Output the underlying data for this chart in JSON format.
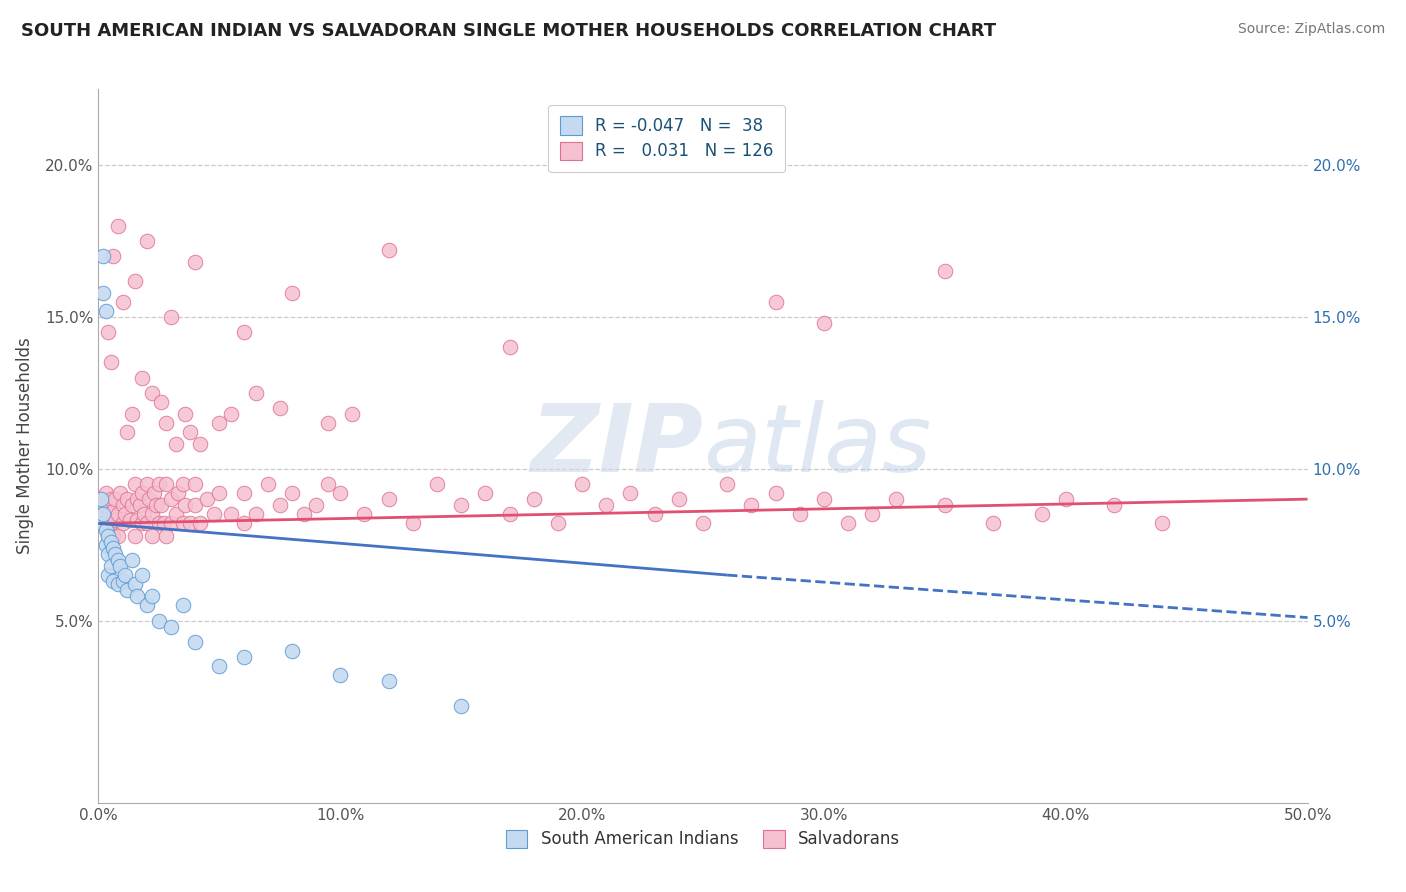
{
  "title": "SOUTH AMERICAN INDIAN VS SALVADORAN SINGLE MOTHER HOUSEHOLDS CORRELATION CHART",
  "source": "Source: ZipAtlas.com",
  "xlabel_blue": "South American Indians",
  "xlabel_pink": "Salvadorans",
  "ylabel": "Single Mother Households",
  "xlim": [
    0.0,
    0.5
  ],
  "ylim": [
    -0.01,
    0.225
  ],
  "xticks": [
    0.0,
    0.1,
    0.2,
    0.3,
    0.4,
    0.5
  ],
  "yticks": [
    0.05,
    0.1,
    0.15,
    0.2
  ],
  "xticklabels": [
    "0.0%",
    "10.0%",
    "20.0%",
    "30.0%",
    "40.0%",
    "50.0%"
  ],
  "yticklabels": [
    "5.0%",
    "10.0%",
    "15.0%",
    "20.0%"
  ],
  "legend_r_blue": "-0.047",
  "legend_n_blue": "38",
  "legend_r_pink": "0.031",
  "legend_n_pink": "126",
  "blue_fill": "#c5daf0",
  "blue_edge": "#5b9bd5",
  "pink_fill": "#f5c0d0",
  "pink_edge": "#e07090",
  "blue_line": "#4472c4",
  "pink_line": "#e05070",
  "watermark_color": "#ccd8ea",
  "grid_color": "#cccccc",
  "title_color": "#222222",
  "source_color": "#777777",
  "legend_text_color": "#1a5276",
  "blue_line_start_x": 0.0,
  "blue_line_start_y": 0.082,
  "blue_line_solid_end_x": 0.26,
  "blue_line_solid_end_y": 0.065,
  "blue_line_dash_end_x": 0.5,
  "blue_line_dash_end_y": 0.051,
  "pink_line_start_x": 0.0,
  "pink_line_start_y": 0.082,
  "pink_line_end_x": 0.5,
  "pink_line_end_y": 0.09,
  "blue_x": [
    0.001,
    0.001,
    0.002,
    0.002,
    0.002,
    0.003,
    0.003,
    0.003,
    0.004,
    0.004,
    0.004,
    0.005,
    0.005,
    0.006,
    0.006,
    0.007,
    0.008,
    0.008,
    0.009,
    0.01,
    0.011,
    0.012,
    0.014,
    0.015,
    0.016,
    0.018,
    0.02,
    0.022,
    0.025,
    0.03,
    0.035,
    0.04,
    0.05,
    0.06,
    0.08,
    0.1,
    0.12,
    0.15
  ],
  "blue_y": [
    0.09,
    0.082,
    0.17,
    0.158,
    0.085,
    0.152,
    0.08,
    0.075,
    0.078,
    0.072,
    0.065,
    0.076,
    0.068,
    0.074,
    0.063,
    0.072,
    0.07,
    0.062,
    0.068,
    0.063,
    0.065,
    0.06,
    0.07,
    0.062,
    0.058,
    0.065,
    0.055,
    0.058,
    0.05,
    0.048,
    0.055,
    0.043,
    0.035,
    0.038,
    0.04,
    0.032,
    0.03,
    0.022
  ],
  "pink_x": [
    0.002,
    0.003,
    0.004,
    0.004,
    0.005,
    0.005,
    0.006,
    0.006,
    0.007,
    0.007,
    0.008,
    0.008,
    0.009,
    0.01,
    0.01,
    0.011,
    0.012,
    0.013,
    0.014,
    0.015,
    0.015,
    0.016,
    0.016,
    0.017,
    0.018,
    0.018,
    0.019,
    0.02,
    0.02,
    0.021,
    0.022,
    0.022,
    0.023,
    0.024,
    0.025,
    0.025,
    0.026,
    0.027,
    0.028,
    0.028,
    0.03,
    0.03,
    0.032,
    0.033,
    0.035,
    0.035,
    0.036,
    0.038,
    0.04,
    0.04,
    0.042,
    0.045,
    0.048,
    0.05,
    0.055,
    0.06,
    0.06,
    0.065,
    0.07,
    0.075,
    0.08,
    0.085,
    0.09,
    0.095,
    0.1,
    0.11,
    0.12,
    0.13,
    0.14,
    0.15,
    0.16,
    0.17,
    0.18,
    0.19,
    0.2,
    0.21,
    0.22,
    0.23,
    0.24,
    0.25,
    0.26,
    0.27,
    0.28,
    0.29,
    0.3,
    0.31,
    0.32,
    0.33,
    0.35,
    0.37,
    0.39,
    0.4,
    0.42,
    0.44,
    0.35,
    0.3,
    0.28,
    0.12,
    0.17,
    0.08,
    0.06,
    0.04,
    0.03,
    0.02,
    0.015,
    0.01,
    0.008,
    0.006,
    0.005,
    0.004,
    0.012,
    0.014,
    0.018,
    0.022,
    0.026,
    0.028,
    0.032,
    0.036,
    0.038,
    0.042,
    0.05,
    0.055,
    0.065,
    0.075,
    0.095,
    0.105
  ],
  "pink_y": [
    0.088,
    0.092,
    0.085,
    0.078,
    0.09,
    0.082,
    0.086,
    0.078,
    0.09,
    0.083,
    0.085,
    0.078,
    0.092,
    0.088,
    0.082,
    0.085,
    0.09,
    0.083,
    0.088,
    0.095,
    0.078,
    0.09,
    0.083,
    0.088,
    0.092,
    0.082,
    0.085,
    0.095,
    0.082,
    0.09,
    0.085,
    0.078,
    0.092,
    0.088,
    0.082,
    0.095,
    0.088,
    0.082,
    0.095,
    0.078,
    0.09,
    0.082,
    0.085,
    0.092,
    0.082,
    0.095,
    0.088,
    0.082,
    0.095,
    0.088,
    0.082,
    0.09,
    0.085,
    0.092,
    0.085,
    0.092,
    0.082,
    0.085,
    0.095,
    0.088,
    0.092,
    0.085,
    0.088,
    0.095,
    0.092,
    0.085,
    0.09,
    0.082,
    0.095,
    0.088,
    0.092,
    0.085,
    0.09,
    0.082,
    0.095,
    0.088,
    0.092,
    0.085,
    0.09,
    0.082,
    0.095,
    0.088,
    0.092,
    0.085,
    0.09,
    0.082,
    0.085,
    0.09,
    0.088,
    0.082,
    0.085,
    0.09,
    0.088,
    0.082,
    0.165,
    0.148,
    0.155,
    0.172,
    0.14,
    0.158,
    0.145,
    0.168,
    0.15,
    0.175,
    0.162,
    0.155,
    0.18,
    0.17,
    0.135,
    0.145,
    0.112,
    0.118,
    0.13,
    0.125,
    0.122,
    0.115,
    0.108,
    0.118,
    0.112,
    0.108,
    0.115,
    0.118,
    0.125,
    0.12,
    0.115,
    0.118
  ]
}
